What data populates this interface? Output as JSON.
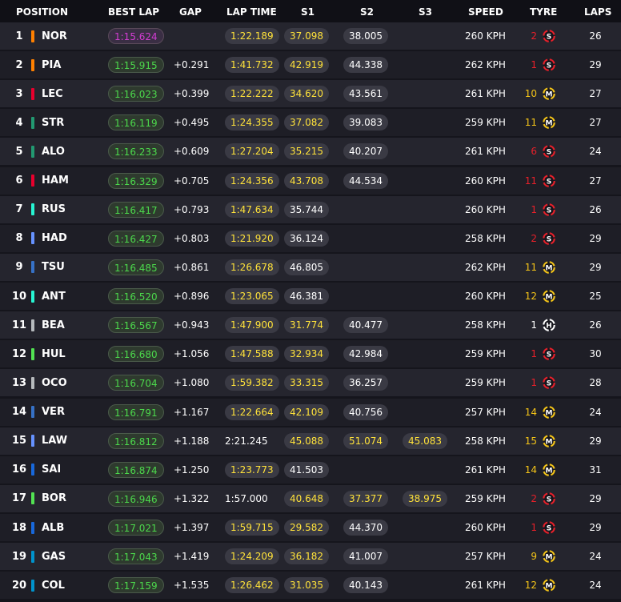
{
  "headers": {
    "position": "POSITION",
    "best_lap": "BEST LAP",
    "gap": "GAP",
    "lap_time": "LAP TIME",
    "s1": "S1",
    "s2": "S2",
    "s3": "S3",
    "speed": "SPEED",
    "tyre": "TYRE",
    "laps": "LAPS"
  },
  "colors": {
    "purple": "#d23cd2",
    "green": "#4cd94c",
    "yellow": "#ffe23a",
    "soft": "#e8202a",
    "medium": "#f5c518",
    "hard": "#ffffff"
  },
  "rows": [
    {
      "pos": "1",
      "driver": "NOR",
      "team_color": "#ff8000",
      "best_lap": "1:15.624",
      "best_lap_style": "purple",
      "gap": "",
      "lap_time": "1:22.189",
      "lap_time_style": "yellow",
      "s1": "37.098",
      "s1_style": "yellow",
      "s2": "38.005",
      "s2_style": "grey",
      "s3": "",
      "s3_style": "",
      "speed": "260 KPH",
      "tyre_age": "2",
      "tyre": "S",
      "tyre_icon": "soft-tyre-icon",
      "laps": "26"
    },
    {
      "pos": "2",
      "driver": "PIA",
      "team_color": "#ff8000",
      "best_lap": "1:15.915",
      "best_lap_style": "green",
      "gap": "+0.291",
      "lap_time": "1:41.732",
      "lap_time_style": "yellow",
      "s1": "42.919",
      "s1_style": "yellow",
      "s2": "44.338",
      "s2_style": "grey",
      "s3": "",
      "s3_style": "",
      "speed": "262 KPH",
      "tyre_age": "1",
      "tyre": "S",
      "tyre_icon": "soft-tyre-icon",
      "laps": "29"
    },
    {
      "pos": "3",
      "driver": "LEC",
      "team_color": "#e8002d",
      "best_lap": "1:16.023",
      "best_lap_style": "green",
      "gap": "+0.399",
      "lap_time": "1:22.222",
      "lap_time_style": "yellow",
      "s1": "34.620",
      "s1_style": "yellow",
      "s2": "43.561",
      "s2_style": "grey",
      "s3": "",
      "s3_style": "",
      "speed": "261 KPH",
      "tyre_age": "10",
      "tyre": "M",
      "tyre_icon": "medium-tyre-icon",
      "laps": "27"
    },
    {
      "pos": "4",
      "driver": "STR",
      "team_color": "#229971",
      "best_lap": "1:16.119",
      "best_lap_style": "green",
      "gap": "+0.495",
      "lap_time": "1:24.355",
      "lap_time_style": "yellow",
      "s1": "37.082",
      "s1_style": "yellow",
      "s2": "39.083",
      "s2_style": "grey",
      "s3": "",
      "s3_style": "",
      "speed": "259 KPH",
      "tyre_age": "11",
      "tyre": "M",
      "tyre_icon": "medium-tyre-icon",
      "laps": "27"
    },
    {
      "pos": "5",
      "driver": "ALO",
      "team_color": "#229971",
      "best_lap": "1:16.233",
      "best_lap_style": "green",
      "gap": "+0.609",
      "lap_time": "1:27.204",
      "lap_time_style": "yellow",
      "s1": "35.215",
      "s1_style": "yellow",
      "s2": "40.207",
      "s2_style": "grey",
      "s3": "",
      "s3_style": "",
      "speed": "261 KPH",
      "tyre_age": "6",
      "tyre": "S",
      "tyre_icon": "soft-tyre-icon",
      "laps": "24"
    },
    {
      "pos": "6",
      "driver": "HAM",
      "team_color": "#e8002d",
      "best_lap": "1:16.329",
      "best_lap_style": "green",
      "gap": "+0.705",
      "lap_time": "1:24.356",
      "lap_time_style": "yellow",
      "s1": "43.708",
      "s1_style": "yellow",
      "s2": "44.534",
      "s2_style": "grey",
      "s3": "",
      "s3_style": "",
      "speed": "260 KPH",
      "tyre_age": "11",
      "tyre": "S",
      "tyre_icon": "soft-tyre-icon",
      "laps": "27"
    },
    {
      "pos": "7",
      "driver": "RUS",
      "team_color": "#27f4d2",
      "best_lap": "1:16.417",
      "best_lap_style": "green",
      "gap": "+0.793",
      "lap_time": "1:47.634",
      "lap_time_style": "yellow",
      "s1": "35.744",
      "s1_style": "grey",
      "s2": "",
      "s2_style": "",
      "s3": "",
      "s3_style": "",
      "speed": "260 KPH",
      "tyre_age": "1",
      "tyre": "S",
      "tyre_icon": "soft-tyre-icon",
      "laps": "26"
    },
    {
      "pos": "8",
      "driver": "HAD",
      "team_color": "#6692ff",
      "best_lap": "1:16.427",
      "best_lap_style": "green",
      "gap": "+0.803",
      "lap_time": "1:21.920",
      "lap_time_style": "yellow",
      "s1": "36.124",
      "s1_style": "grey",
      "s2": "",
      "s2_style": "",
      "s3": "",
      "s3_style": "",
      "speed": "258 KPH",
      "tyre_age": "2",
      "tyre": "S",
      "tyre_icon": "soft-tyre-icon",
      "laps": "29"
    },
    {
      "pos": "9",
      "driver": "TSU",
      "team_color": "#3671c6",
      "best_lap": "1:16.485",
      "best_lap_style": "green",
      "gap": "+0.861",
      "lap_time": "1:26.678",
      "lap_time_style": "yellow",
      "s1": "46.805",
      "s1_style": "grey",
      "s2": "",
      "s2_style": "",
      "s3": "",
      "s3_style": "",
      "speed": "262 KPH",
      "tyre_age": "11",
      "tyre": "M",
      "tyre_icon": "medium-tyre-icon",
      "laps": "29"
    },
    {
      "pos": "10",
      "driver": "ANT",
      "team_color": "#27f4d2",
      "best_lap": "1:16.520",
      "best_lap_style": "green",
      "gap": "+0.896",
      "lap_time": "1:23.065",
      "lap_time_style": "yellow",
      "s1": "46.381",
      "s1_style": "grey",
      "s2": "",
      "s2_style": "",
      "s3": "",
      "s3_style": "",
      "speed": "260 KPH",
      "tyre_age": "12",
      "tyre": "M",
      "tyre_icon": "medium-tyre-icon",
      "laps": "25"
    },
    {
      "pos": "11",
      "driver": "BEA",
      "team_color": "#b6babd",
      "best_lap": "1:16.567",
      "best_lap_style": "green",
      "gap": "+0.943",
      "lap_time": "1:47.900",
      "lap_time_style": "yellow",
      "s1": "31.774",
      "s1_style": "yellow",
      "s2": "40.477",
      "s2_style": "grey",
      "s3": "",
      "s3_style": "",
      "speed": "258 KPH",
      "tyre_age": "1",
      "tyre": "H",
      "tyre_icon": "hard-tyre-icon",
      "laps": "26"
    },
    {
      "pos": "12",
      "driver": "HUL",
      "team_color": "#52e252",
      "best_lap": "1:16.680",
      "best_lap_style": "green",
      "gap": "+1.056",
      "lap_time": "1:47.588",
      "lap_time_style": "yellow",
      "s1": "32.934",
      "s1_style": "yellow",
      "s2": "42.984",
      "s2_style": "grey",
      "s3": "",
      "s3_style": "",
      "speed": "259 KPH",
      "tyre_age": "1",
      "tyre": "S",
      "tyre_icon": "soft-tyre-icon",
      "laps": "30"
    },
    {
      "pos": "13",
      "driver": "OCO",
      "team_color": "#b6babd",
      "best_lap": "1:16.704",
      "best_lap_style": "green",
      "gap": "+1.080",
      "lap_time": "1:59.382",
      "lap_time_style": "yellow",
      "s1": "33.315",
      "s1_style": "yellow",
      "s2": "36.257",
      "s2_style": "grey",
      "s3": "",
      "s3_style": "",
      "speed": "259 KPH",
      "tyre_age": "1",
      "tyre": "S",
      "tyre_icon": "soft-tyre-icon",
      "laps": "28"
    },
    {
      "pos": "14",
      "driver": "VER",
      "team_color": "#3671c6",
      "best_lap": "1:16.791",
      "best_lap_style": "green",
      "gap": "+1.167",
      "lap_time": "1:22.664",
      "lap_time_style": "yellow",
      "s1": "42.109",
      "s1_style": "yellow",
      "s2": "40.756",
      "s2_style": "grey",
      "s3": "",
      "s3_style": "",
      "speed": "257 KPH",
      "tyre_age": "14",
      "tyre": "M",
      "tyre_icon": "medium-tyre-icon",
      "laps": "24"
    },
    {
      "pos": "15",
      "driver": "LAW",
      "team_color": "#6692ff",
      "best_lap": "1:16.812",
      "best_lap_style": "green",
      "gap": "+1.188",
      "lap_time": "2:21.245",
      "lap_time_style": "plain",
      "s1": "45.088",
      "s1_style": "yellow",
      "s2": "51.074",
      "s2_style": "yellow",
      "s3": "45.083",
      "s3_style": "yellow",
      "speed": "258 KPH",
      "tyre_age": "15",
      "tyre": "M",
      "tyre_icon": "medium-tyre-icon",
      "laps": "29"
    },
    {
      "pos": "16",
      "driver": "SAI",
      "team_color": "#1868db",
      "best_lap": "1:16.874",
      "best_lap_style": "green",
      "gap": "+1.250",
      "lap_time": "1:23.773",
      "lap_time_style": "yellow",
      "s1": "41.503",
      "s1_style": "grey",
      "s2": "",
      "s2_style": "",
      "s3": "",
      "s3_style": "",
      "speed": "261 KPH",
      "tyre_age": "14",
      "tyre": "M",
      "tyre_icon": "medium-tyre-icon",
      "laps": "31"
    },
    {
      "pos": "17",
      "driver": "BOR",
      "team_color": "#52e252",
      "best_lap": "1:16.946",
      "best_lap_style": "green",
      "gap": "+1.322",
      "lap_time": "1:57.000",
      "lap_time_style": "plain",
      "s1": "40.648",
      "s1_style": "yellow",
      "s2": "37.377",
      "s2_style": "yellow",
      "s3": "38.975",
      "s3_style": "yellow",
      "speed": "259 KPH",
      "tyre_age": "2",
      "tyre": "S",
      "tyre_icon": "soft-tyre-icon",
      "laps": "29"
    },
    {
      "pos": "18",
      "driver": "ALB",
      "team_color": "#1868db",
      "best_lap": "1:17.021",
      "best_lap_style": "green",
      "gap": "+1.397",
      "lap_time": "1:59.715",
      "lap_time_style": "yellow",
      "s1": "29.582",
      "s1_style": "yellow",
      "s2": "44.370",
      "s2_style": "grey",
      "s3": "",
      "s3_style": "",
      "speed": "260 KPH",
      "tyre_age": "1",
      "tyre": "S",
      "tyre_icon": "soft-tyre-icon",
      "laps": "29"
    },
    {
      "pos": "19",
      "driver": "GAS",
      "team_color": "#0093cc",
      "best_lap": "1:17.043",
      "best_lap_style": "green",
      "gap": "+1.419",
      "lap_time": "1:24.209",
      "lap_time_style": "yellow",
      "s1": "36.182",
      "s1_style": "yellow",
      "s2": "41.007",
      "s2_style": "grey",
      "s3": "",
      "s3_style": "",
      "speed": "257 KPH",
      "tyre_age": "9",
      "tyre": "M",
      "tyre_icon": "medium-tyre-icon",
      "laps": "24"
    },
    {
      "pos": "20",
      "driver": "COL",
      "team_color": "#0093cc",
      "best_lap": "1:17.159",
      "best_lap_style": "green",
      "gap": "+1.535",
      "lap_time": "1:26.462",
      "lap_time_style": "yellow",
      "s1": "31.035",
      "s1_style": "yellow",
      "s2": "40.143",
      "s2_style": "grey",
      "s3": "",
      "s3_style": "",
      "speed": "261 KPH",
      "tyre_age": "12",
      "tyre": "M",
      "tyre_icon": "medium-tyre-icon",
      "laps": "24"
    }
  ]
}
